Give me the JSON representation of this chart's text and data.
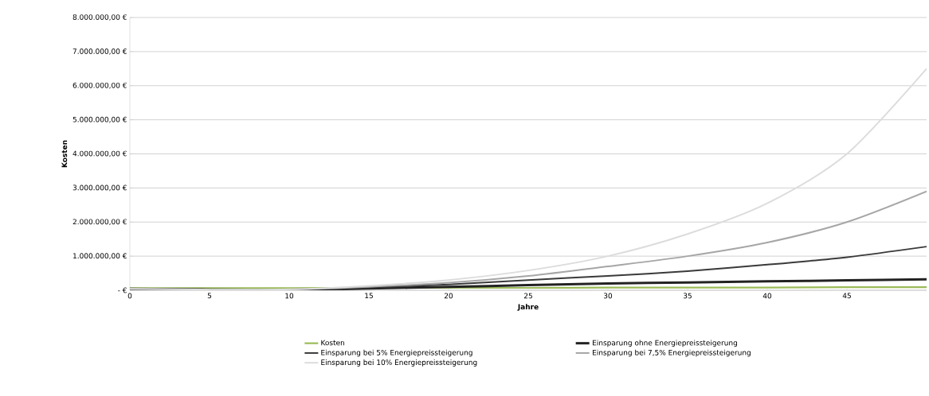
{
  "chart_data": {
    "type": "line",
    "xlabel": "Jahre",
    "ylabel": "Kosten",
    "xlim": [
      0,
      50
    ],
    "xticks": [
      0,
      5,
      10,
      15,
      20,
      25,
      30,
      35,
      40,
      45
    ],
    "ylim": [
      0,
      8000000
    ],
    "yticks": [
      {
        "value": 0,
        "label": "-   €"
      },
      {
        "value": 1000000,
        "label": "1.000.000,00 €"
      },
      {
        "value": 2000000,
        "label": "2.000.000,00 €"
      },
      {
        "value": 3000000,
        "label": "3.000.000,00 €"
      },
      {
        "value": 4000000,
        "label": "4.000.000,00 €"
      },
      {
        "value": 5000000,
        "label": "5.000.000,00 €"
      },
      {
        "value": 6000000,
        "label": "6.000.000,00 €"
      },
      {
        "value": 7000000,
        "label": "7.000.000,00 €"
      },
      {
        "value": 8000000,
        "label": "8.000.000,00 €"
      }
    ],
    "x": [
      0,
      5,
      10,
      15,
      20,
      25,
      30,
      35,
      40,
      45,
      50
    ],
    "grid": "y",
    "legend": "bottom",
    "marker": "none",
    "line_style": "solid",
    "series": [
      {
        "name": "Kosten",
        "color": "#9bbb59",
        "values": [
          60000,
          60000,
          60000,
          70000,
          70000,
          70000,
          80000,
          80000,
          80000,
          90000,
          90000
        ]
      },
      {
        "name": "Einsparung ohne Energiepreissteigerung",
        "color": "#222222",
        "values": [
          40000,
          20000,
          10000,
          50000,
          100000,
          150000,
          200000,
          230000,
          260000,
          290000,
          320000
        ]
      },
      {
        "name": "Einsparung bei 5% Energiepreissteigerung",
        "color": "#3a3a3a",
        "values": [
          40000,
          20000,
          20000,
          80000,
          170000,
          300000,
          420000,
          560000,
          750000,
          970000,
          1280000
        ]
      },
      {
        "name": "Einsparung bei 7,5% Energiepreissteigerung",
        "color": "#a6a6a6",
        "values": [
          40000,
          20000,
          20000,
          100000,
          220000,
          420000,
          700000,
          1000000,
          1400000,
          2000000,
          2900000
        ]
      },
      {
        "name": "Einsparung bei 10% Energiepreissteigerung",
        "color": "#dcdcdc",
        "values": [
          40000,
          20000,
          30000,
          130000,
          300000,
          580000,
          1000000,
          1650000,
          2550000,
          4000000,
          6500000
        ]
      }
    ]
  }
}
